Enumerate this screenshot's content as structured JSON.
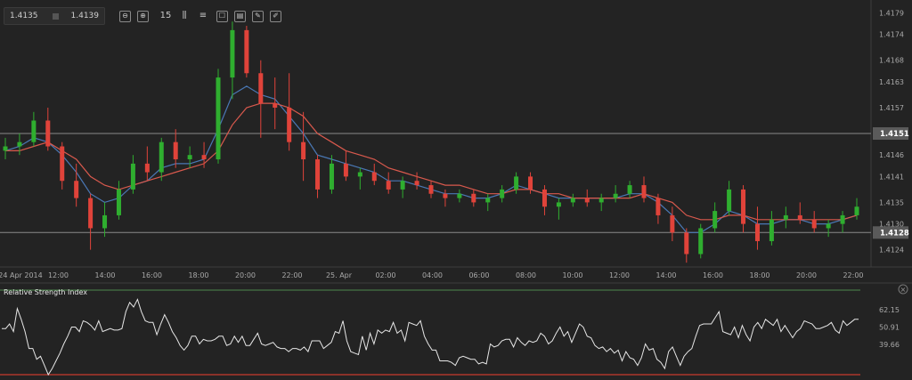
{
  "quote": {
    "bid": "1.4135",
    "ask": "1.4139"
  },
  "toolbar": [
    {
      "name": "zoom-out-icon",
      "glyph": "⊖"
    },
    {
      "name": "zoom-in-icon",
      "glyph": "⊕"
    },
    {
      "name": "timeframe-button",
      "glyph": "15"
    },
    {
      "name": "chart-type-icon",
      "glyph": "⫼"
    },
    {
      "name": "indicators-icon",
      "glyph": "≡"
    },
    {
      "name": "drawing-icon",
      "glyph": "☐"
    },
    {
      "name": "template-icon",
      "glyph": "▤"
    },
    {
      "name": "edit-icon",
      "glyph": "✎"
    },
    {
      "name": "pencil-icon",
      "glyph": "✐"
    }
  ],
  "price_axis": [
    "1.4179",
    "1.4174",
    "1.4168",
    "1.4163",
    "1.4157",
    "1.4146",
    "1.4141",
    "1.4135",
    "1.4130",
    "1.4124"
  ],
  "price_lines": [
    {
      "label": "1.4151"
    },
    {
      "label": "1.4128"
    }
  ],
  "time_axis": [
    "24 Apr 2014",
    "12:00",
    "14:00",
    "16:00",
    "18:00",
    "20:00",
    "22:00",
    "25. Apr",
    "02:00",
    "04:00",
    "06:00",
    "08:00",
    "10:00",
    "12:00",
    "14:00",
    "16:00",
    "18:00",
    "20:00",
    "22:00"
  ],
  "rsi": {
    "title": "Relative Strength Index",
    "levels": [
      "62.15",
      "50.91",
      "39.66"
    ],
    "values": [
      50,
      50,
      53,
      48,
      63,
      56,
      48,
      37,
      37,
      30,
      32,
      26,
      20,
      24,
      29,
      34,
      40,
      45,
      51,
      51,
      48,
      55,
      54,
      52,
      49,
      55,
      48,
      49,
      50,
      49,
      49,
      50,
      61,
      67,
      64,
      69,
      61,
      55,
      54,
      54,
      46,
      53,
      59,
      54,
      48,
      44,
      39,
      36,
      39,
      45,
      45,
      40,
      43,
      42,
      42,
      43,
      45,
      45,
      39,
      40,
      45,
      41,
      45,
      39,
      39,
      43,
      47,
      40,
      39,
      40,
      41,
      38,
      37,
      37,
      35,
      37,
      37,
      36,
      38,
      35,
      42,
      42,
      42,
      37,
      39,
      41,
      48,
      47,
      55,
      42,
      35,
      34,
      33,
      45,
      36,
      47,
      40,
      49,
      47,
      49,
      48,
      54,
      47,
      49,
      42,
      54,
      53,
      52,
      55,
      45,
      40,
      36,
      36,
      29,
      29,
      29,
      28,
      26,
      31,
      32,
      31,
      30,
      30,
      27,
      28,
      27,
      40,
      38,
      39,
      42,
      43,
      43,
      38,
      44,
      41,
      39,
      42,
      41,
      42,
      47,
      45,
      40,
      42,
      47,
      51,
      45,
      48,
      41,
      47,
      53,
      51,
      45,
      44,
      39,
      37,
      38,
      35,
      37,
      34,
      36,
      29,
      35,
      31,
      30,
      26,
      31,
      40,
      36,
      37,
      30,
      28,
      24,
      35,
      38,
      32,
      26,
      32,
      35,
      37,
      45,
      52,
      53,
      53,
      53,
      57,
      61,
      48,
      47,
      46,
      51,
      44,
      52,
      46,
      42,
      51,
      54,
      50,
      56,
      54,
      52,
      56,
      48,
      52,
      48,
      44,
      48,
      50,
      55,
      54,
      53,
      50,
      50,
      51,
      52,
      54,
      49,
      47,
      55,
      52,
      54,
      56,
      56
    ]
  },
  "chart_data": {
    "type": "candlestick",
    "title": "",
    "timeframe": "15",
    "ylim": [
      1.412,
      1.4182
    ],
    "price_ticks": [
      1.4179,
      1.4174,
      1.4168,
      1.4163,
      1.4157,
      1.4146,
      1.4141,
      1.4135,
      1.413,
      1.4124
    ],
    "horizontal_lines": [
      1.4151,
      1.4128
    ],
    "x_tick_labels": [
      "24 Apr 2014",
      "12:00",
      "14:00",
      "16:00",
      "18:00",
      "20:00",
      "22:00",
      "25. Apr",
      "02:00",
      "04:00",
      "06:00",
      "08:00",
      "10:00",
      "12:00",
      "14:00",
      "16:00",
      "18:00",
      "20:00",
      "22:00"
    ],
    "series": [
      {
        "values": [
          [
            1.4147,
            1.415,
            1.4145,
            1.4148
          ],
          [
            1.4148,
            1.4151,
            1.4146,
            1.4149
          ],
          [
            1.4149,
            1.4156,
            1.4148,
            1.4154
          ],
          [
            1.4154,
            1.4157,
            1.4147,
            1.4148
          ],
          [
            1.4148,
            1.4149,
            1.4138,
            1.414
          ],
          [
            1.414,
            1.4144,
            1.4134,
            1.4136
          ],
          [
            1.4136,
            1.4137,
            1.4124,
            1.4129
          ],
          [
            1.4129,
            1.4135,
            1.4127,
            1.4132
          ],
          [
            1.4132,
            1.414,
            1.4131,
            1.4138
          ],
          [
            1.4138,
            1.4146,
            1.4137,
            1.4144
          ],
          [
            1.4144,
            1.4148,
            1.414,
            1.4142
          ],
          [
            1.4142,
            1.415,
            1.414,
            1.4149
          ],
          [
            1.4149,
            1.4152,
            1.4143,
            1.4145
          ],
          [
            1.4145,
            1.4148,
            1.4143,
            1.4146
          ],
          [
            1.4146,
            1.4149,
            1.4143,
            1.4145
          ],
          [
            1.4145,
            1.4166,
            1.4144,
            1.4164
          ],
          [
            1.4164,
            1.4177,
            1.4159,
            1.4175
          ],
          [
            1.4175,
            1.4176,
            1.4164,
            1.4165
          ],
          [
            1.4165,
            1.4168,
            1.415,
            1.4158
          ],
          [
            1.4158,
            1.4164,
            1.4152,
            1.4157
          ],
          [
            1.4157,
            1.4165,
            1.4147,
            1.4149
          ],
          [
            1.4149,
            1.4156,
            1.414,
            1.4145
          ],
          [
            1.4145,
            1.4146,
            1.4136,
            1.4138
          ],
          [
            1.4138,
            1.4146,
            1.4137,
            1.4144
          ],
          [
            1.4144,
            1.4147,
            1.414,
            1.4141
          ],
          [
            1.4141,
            1.4143,
            1.4138,
            1.4142
          ],
          [
            1.4142,
            1.4144,
            1.4139,
            1.414
          ],
          [
            1.414,
            1.4142,
            1.4137,
            1.4138
          ],
          [
            1.4138,
            1.4141,
            1.4136,
            1.414
          ],
          [
            1.414,
            1.4142,
            1.4138,
            1.4139
          ],
          [
            1.4139,
            1.414,
            1.4136,
            1.4137
          ],
          [
            1.4137,
            1.4138,
            1.4134,
            1.4136
          ],
          [
            1.4136,
            1.4138,
            1.4135,
            1.4137
          ],
          [
            1.4137,
            1.4138,
            1.4134,
            1.4135
          ],
          [
            1.4135,
            1.4137,
            1.4133,
            1.4136
          ],
          [
            1.4136,
            1.4139,
            1.4135,
            1.4138
          ],
          [
            1.4138,
            1.4142,
            1.4137,
            1.4141
          ],
          [
            1.4141,
            1.4142,
            1.4137,
            1.4138
          ],
          [
            1.4138,
            1.4139,
            1.4132,
            1.4134
          ],
          [
            1.4134,
            1.4136,
            1.4131,
            1.4135
          ],
          [
            1.4135,
            1.4137,
            1.4134,
            1.4136
          ],
          [
            1.4136,
            1.4138,
            1.4134,
            1.4135
          ],
          [
            1.4135,
            1.4137,
            1.4133,
            1.4136
          ],
          [
            1.4136,
            1.4139,
            1.4135,
            1.4137
          ],
          [
            1.4137,
            1.414,
            1.4136,
            1.4139
          ],
          [
            1.4139,
            1.4141,
            1.4135,
            1.4136
          ],
          [
            1.4136,
            1.4137,
            1.413,
            1.4132
          ],
          [
            1.4132,
            1.4134,
            1.4126,
            1.4128
          ],
          [
            1.4128,
            1.4129,
            1.4121,
            1.4123
          ],
          [
            1.4123,
            1.413,
            1.4122,
            1.4129
          ],
          [
            1.4129,
            1.4135,
            1.4128,
            1.4133
          ],
          [
            1.4133,
            1.414,
            1.4132,
            1.4138
          ],
          [
            1.4138,
            1.4139,
            1.4128,
            1.413
          ],
          [
            1.413,
            1.4134,
            1.4124,
            1.4126
          ],
          [
            1.4126,
            1.4133,
            1.4125,
            1.4131
          ],
          [
            1.4131,
            1.4134,
            1.4129,
            1.4132
          ],
          [
            1.4132,
            1.4135,
            1.413,
            1.4131
          ],
          [
            1.4131,
            1.4133,
            1.4128,
            1.4129
          ],
          [
            1.4129,
            1.4131,
            1.4127,
            1.413
          ],
          [
            1.413,
            1.4133,
            1.4128,
            1.4132
          ],
          [
            1.4132,
            1.4136,
            1.4131,
            1.4134
          ]
        ],
        "format": "[open, high, low, close]"
      },
      {
        "name": "",
        "values": [
          1.4147,
          1.4148,
          1.415,
          1.4149,
          1.4146,
          1.4142,
          1.4137,
          1.4135,
          1.4136,
          1.4139,
          1.414,
          1.4143,
          1.4144,
          1.4144,
          1.4145,
          1.4152,
          1.416,
          1.4162,
          1.416,
          1.4159,
          1.4155,
          1.4151,
          1.4146,
          1.4145,
          1.4144,
          1.4143,
          1.4142,
          1.414,
          1.414,
          1.4139,
          1.4138,
          1.4137,
          1.4137,
          1.4136,
          1.4136,
          1.4137,
          1.4139,
          1.4138,
          1.4137,
          1.4136,
          1.4136,
          1.4136,
          1.4136,
          1.4136,
          1.4137,
          1.4137,
          1.4135,
          1.4132,
          1.4128,
          1.4128,
          1.413,
          1.4133,
          1.4132,
          1.413,
          1.413,
          1.4131,
          1.4131,
          1.413,
          1.413,
          1.4131,
          1.4132
        ]
      },
      {
        "name": "",
        "values": [
          1.4147,
          1.4147,
          1.4148,
          1.4149,
          1.4147,
          1.4145,
          1.4141,
          1.4139,
          1.4138,
          1.4139,
          1.414,
          1.4141,
          1.4142,
          1.4143,
          1.4144,
          1.4147,
          1.4153,
          1.4157,
          1.4158,
          1.4158,
          1.4157,
          1.4155,
          1.4151,
          1.4149,
          1.4147,
          1.4146,
          1.4145,
          1.4143,
          1.4142,
          1.4141,
          1.414,
          1.4139,
          1.4139,
          1.4138,
          1.4137,
          1.4137,
          1.4138,
          1.4138,
          1.4137,
          1.4137,
          1.4136,
          1.4136,
          1.4136,
          1.4136,
          1.4136,
          1.4137,
          1.4136,
          1.4135,
          1.4132,
          1.4131,
          1.4131,
          1.4132,
          1.4132,
          1.4131,
          1.4131,
          1.4131,
          1.4131,
          1.4131,
          1.4131,
          1.4131,
          1.4132
        ]
      }
    ],
    "colors": {
      "up": "#2fae2f",
      "down": "#e0433a",
      "ma_fast": "#4a78b5",
      "ma_slow": "#d9594d",
      "rsi": "#e6e6e6"
    }
  }
}
